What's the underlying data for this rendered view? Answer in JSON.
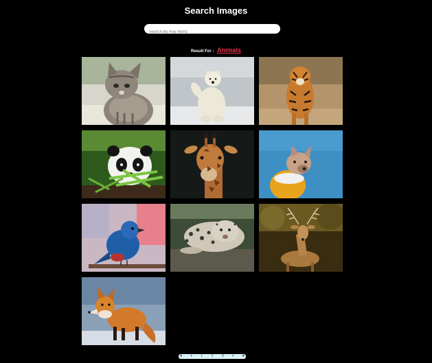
{
  "header": {
    "title": "Search Images"
  },
  "search": {
    "placeholder": "Search By Key Word",
    "value": ""
  },
  "result": {
    "label": "Result For :",
    "keyword": "Animals"
  },
  "images": [
    {
      "alt": "kitten"
    },
    {
      "alt": "polar bear"
    },
    {
      "alt": "tiger"
    },
    {
      "alt": "panda"
    },
    {
      "alt": "giraffe"
    },
    {
      "alt": "french bulldog"
    },
    {
      "alt": "blue bird"
    },
    {
      "alt": "snow leopard"
    },
    {
      "alt": "deer"
    },
    {
      "alt": "red fox"
    }
  ],
  "pagination": {
    "first": "«",
    "prev": "‹",
    "pages": [
      "1",
      "2",
      "3"
    ],
    "next": "›",
    "last": "»"
  }
}
